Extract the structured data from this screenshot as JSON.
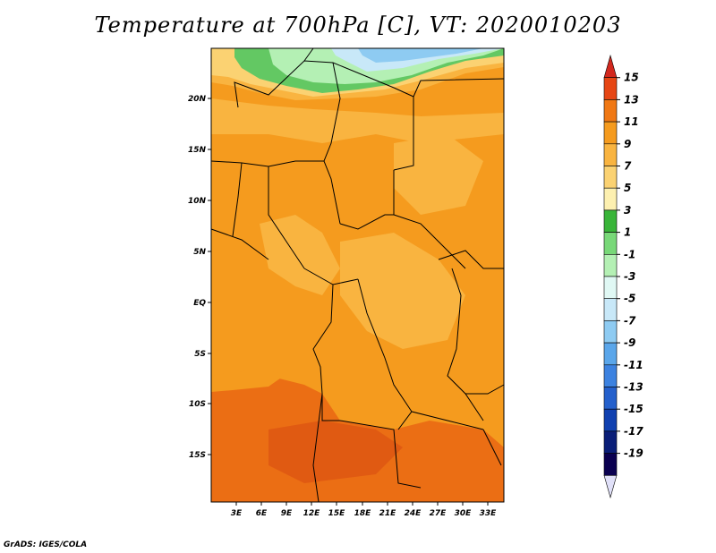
{
  "title": "Temperature at 700hPa [C], VT: 2020010203",
  "credit": "GrADS: IGES/COLA",
  "map": {
    "lat_labels": [
      "20N",
      "15N",
      "10N",
      "5N",
      "EQ",
      "5S",
      "10S",
      "15S"
    ],
    "lon_labels": [
      "3E",
      "6E",
      "9E",
      "12E",
      "15E",
      "18E",
      "21E",
      "24E",
      "27E",
      "30E",
      "33E"
    ]
  },
  "colorbar": {
    "labels": [
      "15",
      "13",
      "11",
      "9",
      "7",
      "5",
      "3",
      "1",
      "-1",
      "-3",
      "-5",
      "-7",
      "-9",
      "-11",
      "-13",
      "-15",
      "-17",
      "-19"
    ],
    "colors": [
      "#d2281e",
      "#e64614",
      "#f07814",
      "#f59b1e",
      "#f9b440",
      "#fbd272",
      "#fdf0b0",
      "#39b539",
      "#78d878",
      "#b4f0b4",
      "#e0f8f4",
      "#c8e8f8",
      "#8ecbf2",
      "#5aa6ea",
      "#3c82e0",
      "#2460cc",
      "#1040b0",
      "#0a1e78",
      "#0a0050",
      "#e0e0f8"
    ]
  },
  "legend_colors": {
    "north_green": "#63c863",
    "north_blue": "#8ecbf2",
    "field_orange": "#f59b1e",
    "field_light": "#f9b440",
    "field_dark": "#eb6e14"
  }
}
